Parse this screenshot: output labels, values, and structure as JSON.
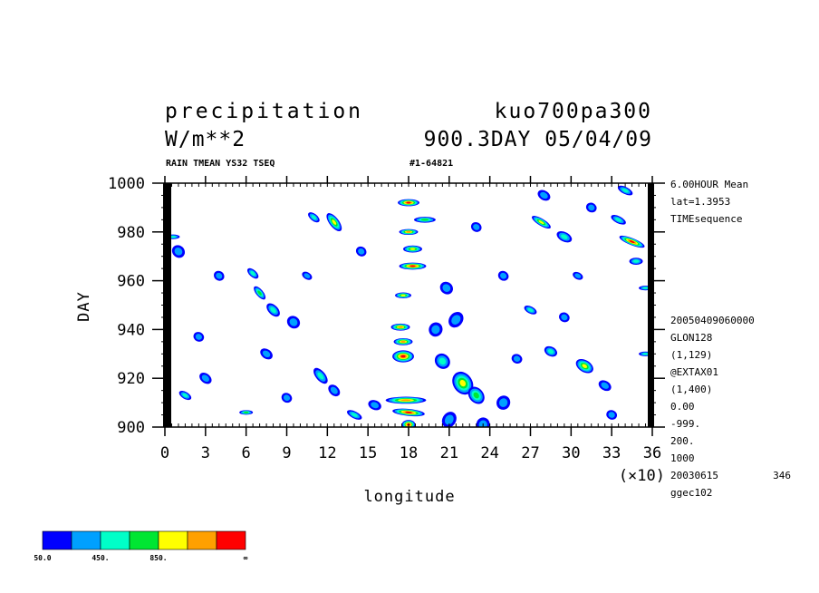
{
  "header": {
    "title_left": "precipitation",
    "title_right": "kuo700pa300",
    "units": "W/m**2",
    "time_stamp": "900.3DAY 05/04/09",
    "subtitle_left": "RAIN TMEAN YS32 TSEQ",
    "subtitle_right": "#1-64821"
  },
  "side_info": {
    "top": [
      "6.00HOUR Mean",
      "lat=1.3953",
      "TIMEsequence"
    ],
    "lower": [
      "20050409060000",
      "GLON128",
      "(1,129)",
      "@EXTAX01",
      "(1,400)",
      "0.00",
      "-999.",
      "200.",
      "1000"
    ],
    "bottom_left": "20030615",
    "bottom_right": "346",
    "bottom_last": "ggec102"
  },
  "colorbar": {
    "colors": [
      "#0000ff",
      "#00a0ff",
      "#00ffc8",
      "#00e632",
      "#ffff00",
      "#ffa000",
      "#ff0000"
    ],
    "labels": [
      "50.0",
      "450.",
      "850.",
      "∞"
    ],
    "label_boundaries": [
      0,
      2,
      4,
      7
    ]
  },
  "chart_data": {
    "type": "heatmap",
    "title": "precipitation",
    "xlabel": "longitude",
    "ylabel": "DAY",
    "x_multiplier_label": "(×10)",
    "xlim": [
      0,
      36
    ],
    "ylim": [
      900,
      1000
    ],
    "xticks": [
      0,
      3,
      6,
      9,
      12,
      15,
      18,
      21,
      24,
      27,
      30,
      33,
      36
    ],
    "yticks": [
      900,
      920,
      940,
      960,
      980,
      1000
    ],
    "xtick_labels": [
      "0",
      "3",
      "6",
      "9",
      "12",
      "15",
      "18",
      "21",
      "24",
      "27",
      "30",
      "33",
      "36"
    ],
    "ytick_labels": [
      "900",
      "920",
      "940",
      "960",
      "980",
      "1000"
    ],
    "levels": [
      50,
      250,
      450,
      650,
      850,
      1050,
      1250
    ],
    "features": [
      {
        "x": 18.0,
        "y": 901,
        "len": 3,
        "slope": 0,
        "w": 0.5,
        "lvl": 6
      },
      {
        "x": 18.0,
        "y": 906,
        "len": 2,
        "slope": -0.1,
        "w": 1.2,
        "lvl": 6
      },
      {
        "x": 17.8,
        "y": 911,
        "len": 2,
        "slope": 0,
        "w": 1.5,
        "lvl": 5
      },
      {
        "x": 17.6,
        "y": 929,
        "len": 4,
        "slope": 0,
        "w": 0.8,
        "lvl": 6
      },
      {
        "x": 17.6,
        "y": 935,
        "len": 2,
        "slope": 0,
        "w": 0.7,
        "lvl": 5
      },
      {
        "x": 17.4,
        "y": 941,
        "len": 2,
        "slope": 0,
        "w": 0.7,
        "lvl": 5
      },
      {
        "x": 17.6,
        "y": 954,
        "len": 1.5,
        "slope": 0,
        "w": 0.6,
        "lvl": 4
      },
      {
        "x": 18.3,
        "y": 966,
        "len": 2,
        "slope": 0,
        "w": 1.0,
        "lvl": 6
      },
      {
        "x": 18.3,
        "y": 973,
        "len": 2,
        "slope": 0,
        "w": 0.7,
        "lvl": 4
      },
      {
        "x": 18.0,
        "y": 980,
        "len": 1.5,
        "slope": 0,
        "w": 0.7,
        "lvl": 5
      },
      {
        "x": 18.0,
        "y": 992,
        "len": 2,
        "slope": 0,
        "w": 0.8,
        "lvl": 6
      },
      {
        "x": 19.2,
        "y": 985,
        "len": 1.5,
        "slope": 0,
        "w": 0.8,
        "lvl": 3
      },
      {
        "x": 22.0,
        "y": 918,
        "len": 7,
        "slope": -1.5,
        "w": 0.9,
        "lvl": 4
      },
      {
        "x": 23.0,
        "y": 913,
        "len": 5,
        "slope": -1.2,
        "w": 0.7,
        "lvl": 3
      },
      {
        "x": 20.5,
        "y": 927,
        "len": 5,
        "slope": -1.0,
        "w": 0.6,
        "lvl": 2
      },
      {
        "x": 20.0,
        "y": 940,
        "len": 5,
        "slope": -0.5,
        "w": 0.5,
        "lvl": 1
      },
      {
        "x": 21.5,
        "y": 944,
        "len": 6,
        "slope": -0.8,
        "w": 0.5,
        "lvl": 1
      },
      {
        "x": 20.8,
        "y": 957,
        "len": 4,
        "slope": -0.8,
        "w": 0.5,
        "lvl": 1
      },
      {
        "x": 21.0,
        "y": 903,
        "len": 6,
        "slope": -0.6,
        "w": 0.5,
        "lvl": 1
      },
      {
        "x": 25.0,
        "y": 910,
        "len": 5,
        "slope": -0.6,
        "w": 0.5,
        "lvl": 1
      },
      {
        "x": 26.0,
        "y": 928,
        "len": 3,
        "slope": -0.4,
        "w": 0.4,
        "lvl": 1
      },
      {
        "x": 23.5,
        "y": 901,
        "len": 5,
        "slope": -0.3,
        "w": 0.5,
        "lvl": 1
      },
      {
        "x": 12.5,
        "y": 984,
        "len": 3,
        "slope": -1.3,
        "w": 0.8,
        "lvl": 4
      },
      {
        "x": 11.0,
        "y": 986,
        "len": 2,
        "slope": -0.8,
        "w": 0.5,
        "lvl": 2
      },
      {
        "x": 8.0,
        "y": 948,
        "len": 3,
        "slope": -1.0,
        "w": 0.6,
        "lvl": 2
      },
      {
        "x": 9.5,
        "y": 943,
        "len": 4,
        "slope": -0.8,
        "w": 0.5,
        "lvl": 1
      },
      {
        "x": 7.0,
        "y": 955,
        "len": 2,
        "slope": -1.2,
        "w": 0.6,
        "lvl": 3
      },
      {
        "x": 6.5,
        "y": 963,
        "len": 2,
        "slope": -0.9,
        "w": 0.5,
        "lvl": 2
      },
      {
        "x": 7.5,
        "y": 930,
        "len": 3,
        "slope": -0.7,
        "w": 0.5,
        "lvl": 1
      },
      {
        "x": 11.5,
        "y": 921,
        "len": 3,
        "slope": -1.2,
        "w": 0.7,
        "lvl": 2
      },
      {
        "x": 12.5,
        "y": 915,
        "len": 3,
        "slope": -1.0,
        "w": 0.5,
        "lvl": 1
      },
      {
        "x": 14.0,
        "y": 905,
        "len": 2,
        "slope": -0.5,
        "w": 0.6,
        "lvl": 2
      },
      {
        "x": 15.5,
        "y": 909,
        "len": 3,
        "slope": -0.4,
        "w": 0.5,
        "lvl": 1
      },
      {
        "x": 6.0,
        "y": 906,
        "len": 1,
        "slope": 0,
        "w": 0.5,
        "lvl": 3
      },
      {
        "x": 3.0,
        "y": 920,
        "len": 3,
        "slope": -0.8,
        "w": 0.5,
        "lvl": 1
      },
      {
        "x": 1.5,
        "y": 913,
        "len": 2,
        "slope": -0.6,
        "w": 0.5,
        "lvl": 2
      },
      {
        "x": 1.0,
        "y": 972,
        "len": 4,
        "slope": -0.9,
        "w": 0.5,
        "lvl": 1
      },
      {
        "x": 0.6,
        "y": 978,
        "len": 1,
        "slope": 0,
        "w": 0.5,
        "lvl": 2
      },
      {
        "x": 4.0,
        "y": 962,
        "len": 3,
        "slope": -0.7,
        "w": 0.4,
        "lvl": 1
      },
      {
        "x": 2.5,
        "y": 937,
        "len": 3,
        "slope": -0.5,
        "w": 0.4,
        "lvl": 1
      },
      {
        "x": 27.8,
        "y": 984,
        "len": 2,
        "slope": -0.6,
        "w": 0.8,
        "lvl": 4
      },
      {
        "x": 29.5,
        "y": 978,
        "len": 3,
        "slope": -0.5,
        "w": 0.6,
        "lvl": 2
      },
      {
        "x": 28.0,
        "y": 995,
        "len": 3,
        "slope": -0.6,
        "w": 0.5,
        "lvl": 1
      },
      {
        "x": 33.5,
        "y": 985,
        "len": 2,
        "slope": -0.5,
        "w": 0.6,
        "lvl": 2
      },
      {
        "x": 34.5,
        "y": 976,
        "len": 2,
        "slope": -0.4,
        "w": 1.0,
        "lvl": 6
      },
      {
        "x": 34.8,
        "y": 968,
        "len": 2,
        "slope": 0,
        "w": 0.5,
        "lvl": 2
      },
      {
        "x": 34.0,
        "y": 997,
        "len": 2,
        "slope": -0.5,
        "w": 0.6,
        "lvl": 2
      },
      {
        "x": 35.5,
        "y": 957,
        "len": 1,
        "slope": 0,
        "w": 0.5,
        "lvl": 2
      },
      {
        "x": 31.0,
        "y": 925,
        "len": 4,
        "slope": -0.6,
        "w": 0.7,
        "lvl": 4
      },
      {
        "x": 28.5,
        "y": 931,
        "len": 3,
        "slope": -0.5,
        "w": 0.5,
        "lvl": 2
      },
      {
        "x": 27.0,
        "y": 948,
        "len": 2,
        "slope": -0.5,
        "w": 0.5,
        "lvl": 2
      },
      {
        "x": 29.5,
        "y": 945,
        "len": 3,
        "slope": -0.5,
        "w": 0.4,
        "lvl": 1
      },
      {
        "x": 32.5,
        "y": 917,
        "len": 3,
        "slope": -0.6,
        "w": 0.5,
        "lvl": 1
      },
      {
        "x": 35.5,
        "y": 930,
        "len": 1,
        "slope": 0,
        "w": 0.5,
        "lvl": 2
      },
      {
        "x": 33.0,
        "y": 905,
        "len": 3,
        "slope": -0.4,
        "w": 0.4,
        "lvl": 1
      },
      {
        "x": 25.0,
        "y": 962,
        "len": 3,
        "slope": -0.6,
        "w": 0.4,
        "lvl": 1
      },
      {
        "x": 23.0,
        "y": 982,
        "len": 3,
        "slope": -0.6,
        "w": 0.4,
        "lvl": 1
      },
      {
        "x": 14.5,
        "y": 972,
        "len": 3,
        "slope": -0.7,
        "w": 0.4,
        "lvl": 1
      },
      {
        "x": 9.0,
        "y": 912,
        "len": 3,
        "slope": -0.6,
        "w": 0.4,
        "lvl": 1
      },
      {
        "x": 10.5,
        "y": 962,
        "len": 2,
        "slope": -0.6,
        "w": 0.4,
        "lvl": 1
      },
      {
        "x": 30.5,
        "y": 962,
        "len": 2,
        "slope": -0.5,
        "w": 0.4,
        "lvl": 1
      },
      {
        "x": 31.5,
        "y": 990,
        "len": 3,
        "slope": -0.5,
        "w": 0.4,
        "lvl": 1
      }
    ]
  }
}
